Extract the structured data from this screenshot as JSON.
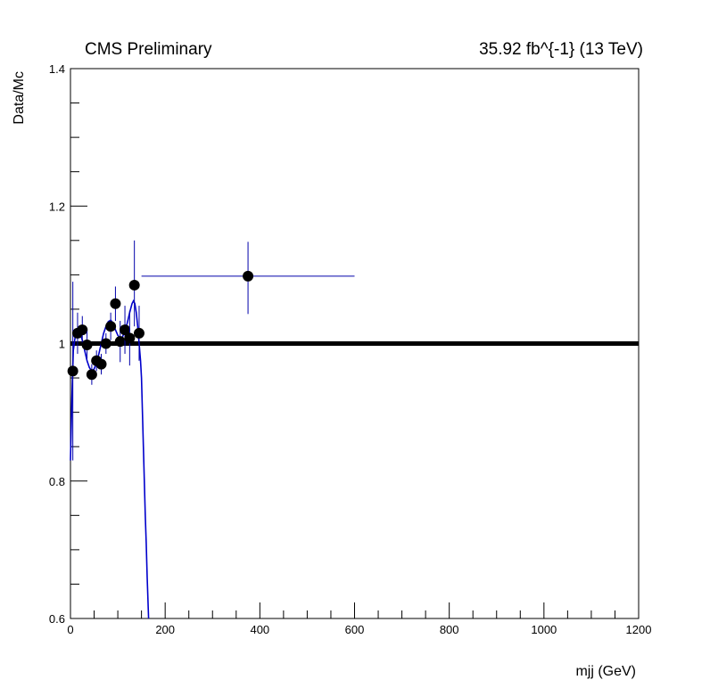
{
  "header": {
    "left": "CMS Preliminary",
    "right": "35.92 fb^{-1} (13 TeV)"
  },
  "chart_data": {
    "type": "scatter",
    "xlabel": "mjj (GeV)",
    "ylabel": "Data/Mc",
    "xlim": [
      0,
      1200
    ],
    "ylim": [
      0.6,
      1.4
    ],
    "x_ticks": [
      0,
      200,
      400,
      600,
      800,
      1000,
      1200
    ],
    "y_ticks": [
      0.6,
      0.8,
      1,
      1.2,
      1.4
    ],
    "x_tick_labels": [
      "0",
      "200",
      "400",
      "600",
      "800",
      "1000",
      "1200"
    ],
    "y_tick_labels": [
      "0.6",
      "0.8",
      "1",
      "1.2",
      "1.4"
    ],
    "reference_line": 1.0,
    "colors": {
      "points": "#000000",
      "fit": "#0000cc",
      "reference": "#000000"
    },
    "series": [
      {
        "type": "points_with_errors",
        "points": [
          {
            "x": 5,
            "y": 0.96,
            "xerr": 5,
            "yerr_lo": 0.13,
            "yerr_hi": 0.13
          },
          {
            "x": 15,
            "y": 1.015,
            "xerr": 5,
            "yerr_lo": 0.03,
            "yerr_hi": 0.03
          },
          {
            "x": 25,
            "y": 1.02,
            "xerr": 5,
            "yerr_lo": 0.02,
            "yerr_hi": 0.02
          },
          {
            "x": 35,
            "y": 0.998,
            "xerr": 5,
            "yerr_lo": 0.02,
            "yerr_hi": 0.02
          },
          {
            "x": 45,
            "y": 0.955,
            "xerr": 5,
            "yerr_lo": 0.015,
            "yerr_hi": 0.015
          },
          {
            "x": 55,
            "y": 0.975,
            "xerr": 5,
            "yerr_lo": 0.015,
            "yerr_hi": 0.015
          },
          {
            "x": 65,
            "y": 0.97,
            "xerr": 5,
            "yerr_lo": 0.015,
            "yerr_hi": 0.015
          },
          {
            "x": 75,
            "y": 1.0,
            "xerr": 5,
            "yerr_lo": 0.015,
            "yerr_hi": 0.015
          },
          {
            "x": 85,
            "y": 1.025,
            "xerr": 5,
            "yerr_lo": 0.02,
            "yerr_hi": 0.02
          },
          {
            "x": 95,
            "y": 1.058,
            "xerr": 5,
            "yerr_lo": 0.025,
            "yerr_hi": 0.025
          },
          {
            "x": 105,
            "y": 1.003,
            "xerr": 5,
            "yerr_lo": 0.03,
            "yerr_hi": 0.03
          },
          {
            "x": 115,
            "y": 1.02,
            "xerr": 5,
            "yerr_lo": 0.035,
            "yerr_hi": 0.035
          },
          {
            "x": 125,
            "y": 1.008,
            "xerr": 5,
            "yerr_lo": 0.04,
            "yerr_hi": 0.04
          },
          {
            "x": 135,
            "y": 1.085,
            "xerr": 5,
            "yerr_lo": 0.06,
            "yerr_hi": 0.065
          },
          {
            "x": 145,
            "y": 1.015,
            "xerr": 5,
            "yerr_lo": 0.04,
            "yerr_hi": 0.04
          },
          {
            "x": 375,
            "y": 1.098,
            "xerr": 225,
            "yerr_lo": 0.055,
            "yerr_hi": 0.05
          }
        ]
      },
      {
        "type": "fit_line",
        "x": [
          0,
          3,
          6,
          10,
          15,
          20,
          25,
          30,
          35,
          40,
          45,
          50,
          55,
          60,
          65,
          70,
          75,
          80,
          85,
          90,
          95,
          100,
          105,
          110,
          115,
          120,
          125,
          130,
          133,
          136,
          139,
          142,
          145,
          148,
          150,
          152,
          154,
          156,
          158,
          160,
          162,
          165
        ],
        "y": [
          0.83,
          0.92,
          0.99,
          1.01,
          1.02,
          1.015,
          1.005,
          0.99,
          0.975,
          0.965,
          0.96,
          0.963,
          0.972,
          0.985,
          1.0,
          1.015,
          1.025,
          1.032,
          1.034,
          1.03,
          1.02,
          1.012,
          1.008,
          1.01,
          1.018,
          1.03,
          1.045,
          1.058,
          1.062,
          1.058,
          1.045,
          1.025,
          1.0,
          0.975,
          0.95,
          0.9,
          0.85,
          0.8,
          0.75,
          0.71,
          0.66,
          0.6
        ]
      }
    ]
  }
}
